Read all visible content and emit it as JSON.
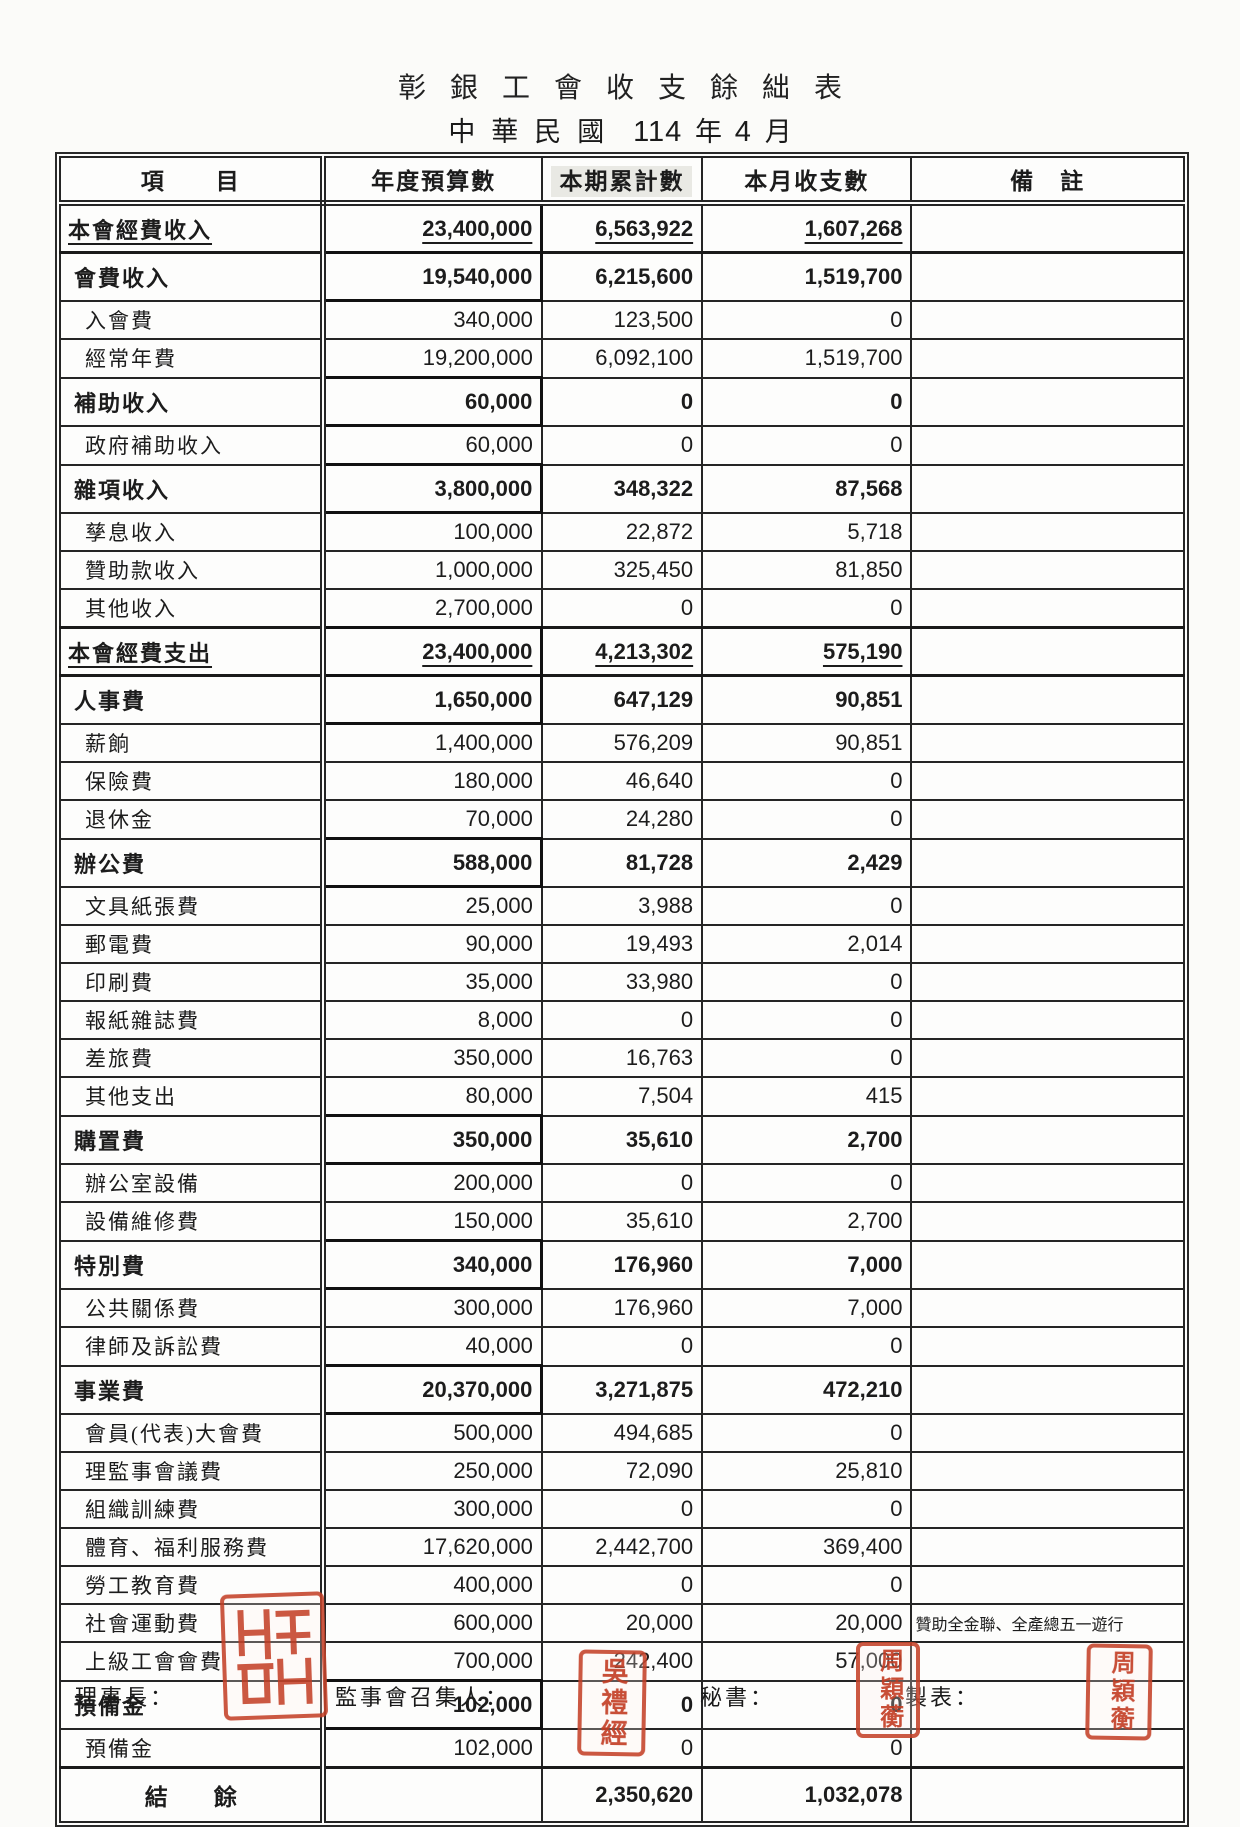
{
  "page": {
    "title": "彰銀工會收支餘絀表",
    "era_label": "中華民國",
    "year": "114",
    "year_unit": "年",
    "month": "4",
    "month_unit": "月"
  },
  "table": {
    "headers": {
      "item": "項　　目",
      "budget": "年度預算數",
      "ytd": "本期累計數",
      "month": "本月收支數",
      "note": "備　註"
    },
    "rows": [
      {
        "label": "本會經費收入",
        "style": "total",
        "budget": "23,400,000",
        "ytd": "6,563,922",
        "month": "1,607,268",
        "note": ""
      },
      {
        "label": "會費收入",
        "style": "section",
        "budget": "19,540,000",
        "ytd": "6,215,600",
        "month": "1,519,700",
        "note": ""
      },
      {
        "label": "入會費",
        "style": "item",
        "budget": "340,000",
        "ytd": "123,500",
        "month": "0",
        "note": ""
      },
      {
        "label": "經常年費",
        "style": "item",
        "budget": "19,200,000",
        "ytd": "6,092,100",
        "month": "1,519,700",
        "note": ""
      },
      {
        "label": "補助收入",
        "style": "section",
        "budget": "60,000",
        "ytd": "0",
        "month": "0",
        "note": ""
      },
      {
        "label": "政府補助收入",
        "style": "item",
        "budget": "60,000",
        "ytd": "0",
        "month": "0",
        "note": ""
      },
      {
        "label": "雜項收入",
        "style": "section",
        "budget": "3,800,000",
        "ytd": "348,322",
        "month": "87,568",
        "note": ""
      },
      {
        "label": "孳息收入",
        "style": "item",
        "budget": "100,000",
        "ytd": "22,872",
        "month": "5,718",
        "note": ""
      },
      {
        "label": "贊助款收入",
        "style": "item",
        "budget": "1,000,000",
        "ytd": "325,450",
        "month": "81,850",
        "note": ""
      },
      {
        "label": "其他收入",
        "style": "item",
        "budget": "2,700,000",
        "ytd": "0",
        "month": "0",
        "note": ""
      },
      {
        "label": "本會經費支出",
        "style": "total",
        "budget": "23,400,000",
        "ytd": "4,213,302",
        "month": "575,190",
        "note": ""
      },
      {
        "label": "人事費",
        "style": "section",
        "budget": "1,650,000",
        "ytd": "647,129",
        "month": "90,851",
        "note": ""
      },
      {
        "label": "薪餉",
        "style": "item",
        "budget": "1,400,000",
        "ytd": "576,209",
        "month": "90,851",
        "note": ""
      },
      {
        "label": "保險費",
        "style": "item",
        "budget": "180,000",
        "ytd": "46,640",
        "month": "0",
        "note": ""
      },
      {
        "label": "退休金",
        "style": "item",
        "budget": "70,000",
        "ytd": "24,280",
        "month": "0",
        "note": ""
      },
      {
        "label": "辦公費",
        "style": "section",
        "budget": "588,000",
        "ytd": "81,728",
        "month": "2,429",
        "note": ""
      },
      {
        "label": "文具紙張費",
        "style": "item",
        "budget": "25,000",
        "ytd": "3,988",
        "month": "0",
        "note": ""
      },
      {
        "label": "郵電費",
        "style": "item",
        "budget": "90,000",
        "ytd": "19,493",
        "month": "2,014",
        "note": ""
      },
      {
        "label": "印刷費",
        "style": "item",
        "budget": "35,000",
        "ytd": "33,980",
        "month": "0",
        "note": ""
      },
      {
        "label": "報紙雜誌費",
        "style": "item",
        "budget": "8,000",
        "ytd": "0",
        "month": "0",
        "note": ""
      },
      {
        "label": "差旅費",
        "style": "item",
        "budget": "350,000",
        "ytd": "16,763",
        "month": "0",
        "note": ""
      },
      {
        "label": "其他支出",
        "style": "item",
        "budget": "80,000",
        "ytd": "7,504",
        "month": "415",
        "note": ""
      },
      {
        "label": "購置費",
        "style": "section",
        "budget": "350,000",
        "ytd": "35,610",
        "month": "2,700",
        "note": ""
      },
      {
        "label": "辦公室設備",
        "style": "item",
        "budget": "200,000",
        "ytd": "0",
        "month": "0",
        "note": ""
      },
      {
        "label": "設備維修費",
        "style": "item",
        "budget": "150,000",
        "ytd": "35,610",
        "month": "2,700",
        "note": ""
      },
      {
        "label": "特別費",
        "style": "section",
        "budget": "340,000",
        "ytd": "176,960",
        "month": "7,000",
        "note": ""
      },
      {
        "label": "公共關係費",
        "style": "item",
        "budget": "300,000",
        "ytd": "176,960",
        "month": "7,000",
        "note": ""
      },
      {
        "label": "律師及訴訟費",
        "style": "item",
        "budget": "40,000",
        "ytd": "0",
        "month": "0",
        "note": ""
      },
      {
        "label": "事業費",
        "style": "section",
        "budget": "20,370,000",
        "ytd": "3,271,875",
        "month": "472,210",
        "note": ""
      },
      {
        "label": "會員(代表)大會費",
        "style": "item",
        "budget": "500,000",
        "ytd": "494,685",
        "month": "0",
        "note": ""
      },
      {
        "label": "理監事會議費",
        "style": "item",
        "budget": "250,000",
        "ytd": "72,090",
        "month": "25,810",
        "note": ""
      },
      {
        "label": "組織訓練費",
        "style": "item",
        "budget": "300,000",
        "ytd": "0",
        "month": "0",
        "note": ""
      },
      {
        "label": "體育、福利服務費",
        "style": "item",
        "budget": "17,620,000",
        "ytd": "2,442,700",
        "month": "369,400",
        "note": ""
      },
      {
        "label": "勞工教育費",
        "style": "item",
        "budget": "400,000",
        "ytd": "0",
        "month": "0",
        "note": ""
      },
      {
        "label": "社會運動費",
        "style": "item",
        "budget": "600,000",
        "ytd": "20,000",
        "month": "20,000",
        "note": "贊助全金聯、全產總五一遊行"
      },
      {
        "label": "上級工會會費",
        "style": "item",
        "budget": "700,000",
        "ytd": "242,400",
        "month": "57,000",
        "note": ""
      },
      {
        "label": "預備金",
        "style": "section",
        "budget": "102,000",
        "ytd": "0",
        "month": "0",
        "note": ""
      },
      {
        "label": "預備金",
        "style": "item",
        "budget": "102,000",
        "ytd": "0",
        "month": "0",
        "note": ""
      },
      {
        "label": "結　　餘",
        "style": "balance",
        "budget": "",
        "ytd": "2,350,620",
        "month": "1,032,078",
        "note": ""
      }
    ]
  },
  "footer": {
    "chairman_label": "理事長：",
    "inspector_label": "監事會召集人：",
    "secretary_label": "秘書：",
    "maker_label": "製表：",
    "seal_color": "#c23b22",
    "inspector_seal_text": "吳禮經",
    "secretary_seal_text": "周穎蘅",
    "maker_seal_text": "周穎蘅"
  }
}
